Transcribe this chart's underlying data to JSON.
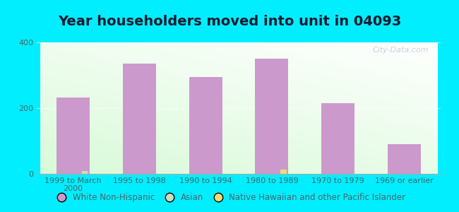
{
  "title": "Year householders moved into unit in 04093",
  "categories": [
    "1999 to March\n2000",
    "1995 to 1998",
    "1990 to 1994",
    "1980 to 1989",
    "1970 to 1979",
    "1969 or earlier"
  ],
  "white_values": [
    232,
    335,
    295,
    350,
    215,
    90
  ],
  "asian_values": [
    8,
    0,
    0,
    0,
    0,
    0
  ],
  "native_hawaiian_values": [
    0,
    0,
    0,
    12,
    0,
    0
  ],
  "white_color": "#cc99cc",
  "asian_color": "#ccddbb",
  "native_hawaiian_color": "#eedd77",
  "background_outer": "#00eeff",
  "ylim": [
    0,
    400
  ],
  "yticks": [
    0,
    200,
    400
  ],
  "bar_width": 0.5,
  "watermark": "City-Data.com",
  "legend_labels": [
    "White Non-Hispanic",
    "Asian",
    "Native Hawaiian and other Pacific Islander"
  ],
  "title_fontsize": 14,
  "tick_fontsize": 8,
  "legend_fontsize": 8.5,
  "tick_color": "#446666"
}
